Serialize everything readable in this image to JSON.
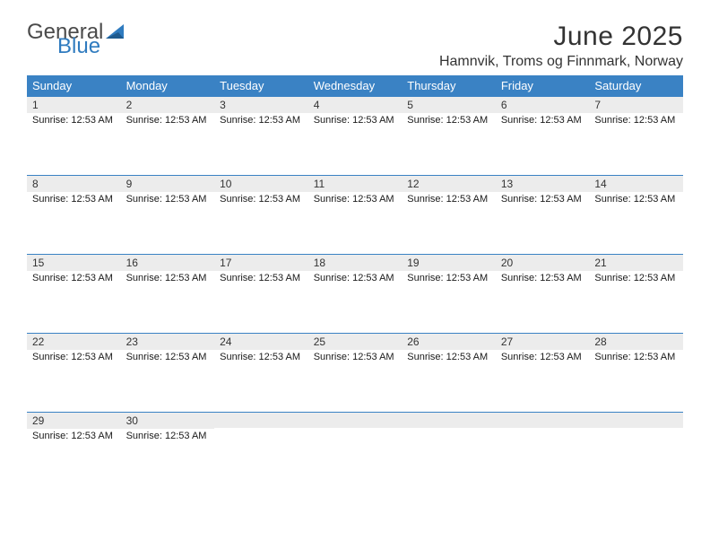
{
  "logo": {
    "text1": "General",
    "text2": "Blue",
    "icon_color": "#2f7bbf"
  },
  "title": "June 2025",
  "location": "Hamnvik, Troms og Finnmark, Norway",
  "colors": {
    "header_bg": "#3a82c4",
    "header_text": "#ffffff",
    "daynum_bg": "#ececec",
    "row_border": "#3a82c4",
    "text": "#333333",
    "body_text": "#1a1a1a",
    "page_bg": "#ffffff"
  },
  "fonts": {
    "title_size": 30,
    "location_size": 16,
    "dayhead_size": 13,
    "daynum_size": 12,
    "body_size": 11
  },
  "day_headers": [
    "Sunday",
    "Monday",
    "Tuesday",
    "Wednesday",
    "Thursday",
    "Friday",
    "Saturday"
  ],
  "weeks": [
    [
      {
        "num": "1",
        "line": "Sunrise: 12:53 AM"
      },
      {
        "num": "2",
        "line": "Sunrise: 12:53 AM"
      },
      {
        "num": "3",
        "line": "Sunrise: 12:53 AM"
      },
      {
        "num": "4",
        "line": "Sunrise: 12:53 AM"
      },
      {
        "num": "5",
        "line": "Sunrise: 12:53 AM"
      },
      {
        "num": "6",
        "line": "Sunrise: 12:53 AM"
      },
      {
        "num": "7",
        "line": "Sunrise: 12:53 AM"
      }
    ],
    [
      {
        "num": "8",
        "line": "Sunrise: 12:53 AM"
      },
      {
        "num": "9",
        "line": "Sunrise: 12:53 AM"
      },
      {
        "num": "10",
        "line": "Sunrise: 12:53 AM"
      },
      {
        "num": "11",
        "line": "Sunrise: 12:53 AM"
      },
      {
        "num": "12",
        "line": "Sunrise: 12:53 AM"
      },
      {
        "num": "13",
        "line": "Sunrise: 12:53 AM"
      },
      {
        "num": "14",
        "line": "Sunrise: 12:53 AM"
      }
    ],
    [
      {
        "num": "15",
        "line": "Sunrise: 12:53 AM"
      },
      {
        "num": "16",
        "line": "Sunrise: 12:53 AM"
      },
      {
        "num": "17",
        "line": "Sunrise: 12:53 AM"
      },
      {
        "num": "18",
        "line": "Sunrise: 12:53 AM"
      },
      {
        "num": "19",
        "line": "Sunrise: 12:53 AM"
      },
      {
        "num": "20",
        "line": "Sunrise: 12:53 AM"
      },
      {
        "num": "21",
        "line": "Sunrise: 12:53 AM"
      }
    ],
    [
      {
        "num": "22",
        "line": "Sunrise: 12:53 AM"
      },
      {
        "num": "23",
        "line": "Sunrise: 12:53 AM"
      },
      {
        "num": "24",
        "line": "Sunrise: 12:53 AM"
      },
      {
        "num": "25",
        "line": "Sunrise: 12:53 AM"
      },
      {
        "num": "26",
        "line": "Sunrise: 12:53 AM"
      },
      {
        "num": "27",
        "line": "Sunrise: 12:53 AM"
      },
      {
        "num": "28",
        "line": "Sunrise: 12:53 AM"
      }
    ],
    [
      {
        "num": "29",
        "line": "Sunrise: 12:53 AM"
      },
      {
        "num": "30",
        "line": "Sunrise: 12:53 AM"
      },
      {
        "num": "",
        "line": ""
      },
      {
        "num": "",
        "line": ""
      },
      {
        "num": "",
        "line": ""
      },
      {
        "num": "",
        "line": ""
      },
      {
        "num": "",
        "line": ""
      }
    ]
  ]
}
